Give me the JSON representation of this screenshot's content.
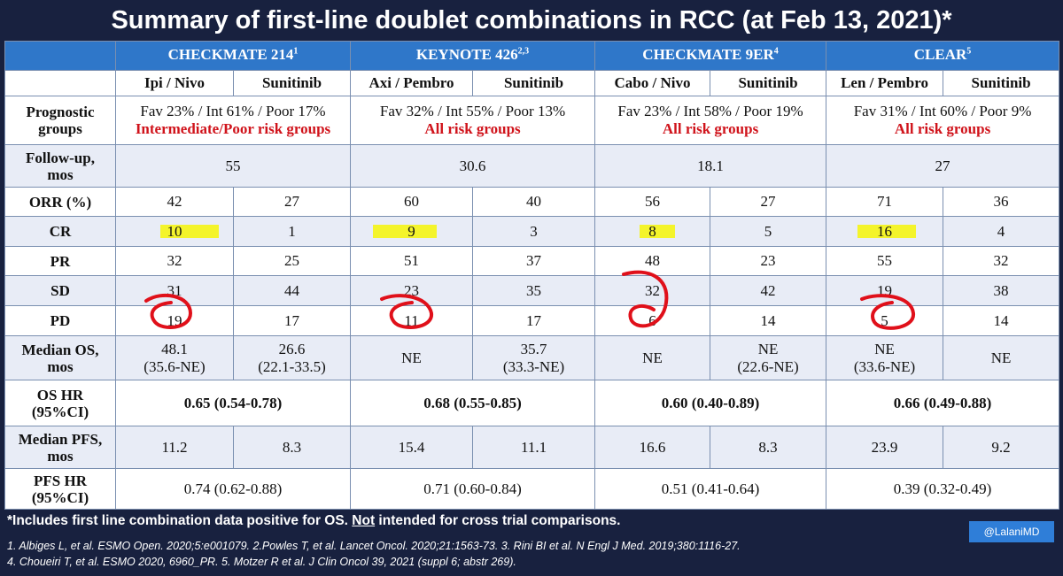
{
  "title": "Summary of first-line doublet combinations in RCC (at Feb 13, 2021)*",
  "trials": [
    {
      "name": "CHECKMATE 214",
      "sup": "1",
      "arm1": "Ipi / Nivo",
      "arm2": "Sunitinib",
      "prognostic": "Fav 23% / Int 61% / Poor 17%",
      "risk": "Intermediate/Poor risk groups",
      "followup": "55",
      "orr": [
        "42",
        "27"
      ],
      "cr": [
        "10",
        "1"
      ],
      "pr": [
        "32",
        "25"
      ],
      "sd": [
        "31",
        "44"
      ],
      "pd": [
        "19",
        "17"
      ],
      "os": [
        "48.1",
        "(35.6-NE)",
        "26.6",
        "(22.1-33.5)"
      ],
      "oshr": "0.65 (0.54-0.78)",
      "pfs": [
        "11.2",
        "8.3"
      ],
      "pfshr": "0.74 (0.62-0.88)"
    },
    {
      "name": "KEYNOTE 426",
      "sup": "2,3",
      "arm1": "Axi / Pembro",
      "arm2": "Sunitinib",
      "prognostic": "Fav 32% / Int 55% / Poor 13%",
      "risk": "All risk groups",
      "followup": "30.6",
      "orr": [
        "60",
        "40"
      ],
      "cr": [
        "9",
        "3"
      ],
      "pr": [
        "51",
        "37"
      ],
      "sd": [
        "23",
        "35"
      ],
      "pd": [
        "11",
        "17"
      ],
      "os": [
        "NE",
        "",
        "35.7",
        "(33.3-NE)"
      ],
      "oshr": "0.68 (0.55-0.85)",
      "pfs": [
        "15.4",
        "11.1"
      ],
      "pfshr": "0.71 (0.60-0.84)"
    },
    {
      "name": "CHECKMATE 9ER",
      "sup": "4",
      "arm1": "Cabo / Nivo",
      "arm2": "Sunitinib",
      "prognostic": "Fav 23% / Int 58% / Poor 19%",
      "risk": "All risk groups",
      "followup": "18.1",
      "orr": [
        "56",
        "27"
      ],
      "cr": [
        "8",
        "5"
      ],
      "pr": [
        "48",
        "23"
      ],
      "sd": [
        "32",
        "42"
      ],
      "pd": [
        "6",
        "14"
      ],
      "os": [
        "NE",
        "",
        "NE",
        "(22.6-NE)"
      ],
      "oshr": "0.60 (0.40-0.89)",
      "pfs": [
        "16.6",
        "8.3"
      ],
      "pfshr": "0.51 (0.41-0.64)"
    },
    {
      "name": "CLEAR",
      "sup": "5",
      "arm1": "Len / Pembro",
      "arm2": "Sunitinib",
      "prognostic": "Fav 31% / Int 60% / Poor 9%",
      "risk": "All risk groups",
      "followup": "27",
      "orr": [
        "71",
        "36"
      ],
      "cr": [
        "16",
        "4"
      ],
      "pr": [
        "55",
        "32"
      ],
      "sd": [
        "19",
        "38"
      ],
      "pd": [
        "5",
        "14"
      ],
      "os": [
        "NE",
        "(33.6-NE)",
        "NE",
        ""
      ],
      "oshr": "0.66 (0.49-0.88)",
      "pfs": [
        "23.9",
        "9.2"
      ],
      "pfshr": "0.39 (0.32-0.49)"
    }
  ],
  "labels": {
    "prognostic": [
      "Prognostic",
      "groups"
    ],
    "followup": [
      "Follow-up,",
      "mos"
    ],
    "orr": "ORR (%)",
    "cr": "CR",
    "pr": "PR",
    "sd": "SD",
    "pd": "PD",
    "os": [
      "Median OS,",
      "mos"
    ],
    "oshr": [
      "OS HR",
      "(95%CI)"
    ],
    "pfs": [
      "Median PFS,",
      "mos"
    ],
    "pfshr": [
      "PFS HR",
      "(95%CI)"
    ]
  },
  "footnote": {
    "pre": "*Includes first line combination data positive for OS. ",
    "not": "Not",
    "post": " intended for cross trial comparisons."
  },
  "refs": [
    "1. Albiges L, et al. ESMO Open. 2020;5:e001079. 2.Powles T, et al. Lancet Oncol. 2020;21:1563-73. 3. Rini BI et al. N Engl J Med. 2019;380:1116-27.",
    "4. Choueiri T, et al. ESMO 2020, 6960_PR. 5. Motzer R et al. J Clin Oncol 39, 2021 (suppl 6; abstr 269)."
  ],
  "handle": "@LalaniMD",
  "colors": {
    "background": "#18213f",
    "header_blue": "#2f77c9",
    "risk_red": "#d0131b",
    "highlight": "#f4f420",
    "annotation_red": "#e0101a"
  }
}
